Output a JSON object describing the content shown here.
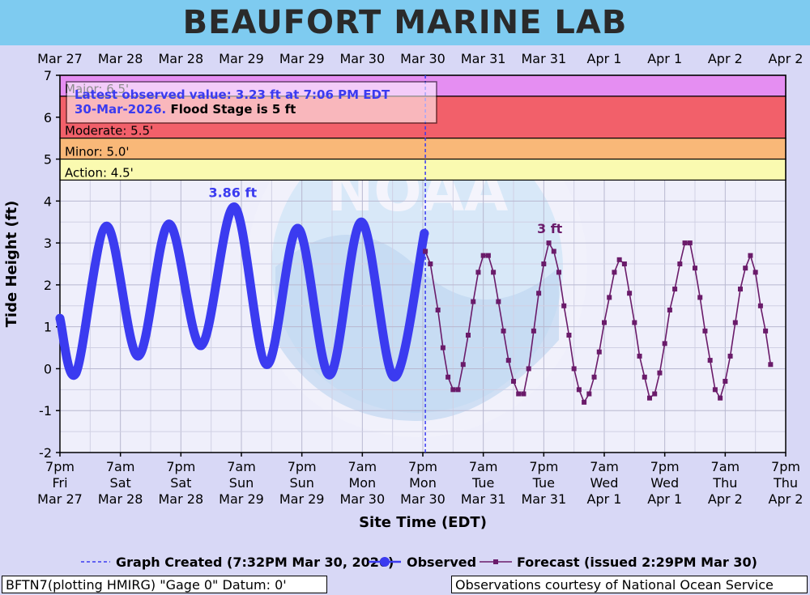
{
  "header": {
    "title": "BEAUFORT MARINE LAB"
  },
  "notice": {
    "line1": "Latest observed value: 3.23 ft at 7:06 PM EDT",
    "line2_blue": "30-Mar-2026.",
    "line2_black": " Flood Stage is 5 ft"
  },
  "footer": {
    "left": "BFTN7(plotting HMIRG) \"Gage 0\" Datum: 0'",
    "right": "Observations courtesy of National Ocean Service"
  },
  "legend": {
    "created": "Graph Created (7:32PM Mar 30, 2026)",
    "observed": "Observed",
    "forecast": "Forecast (issued 2:29PM Mar 30)"
  },
  "chart_data": {
    "type": "line",
    "xlabel": "Site Time (EDT)",
    "ylabel": "Tide Height (ft)",
    "ylim": [
      -2,
      7
    ],
    "y_ticks": [
      -2,
      -1,
      0,
      1,
      2,
      3,
      4,
      5,
      6,
      7
    ],
    "x_unit": "hours",
    "x_range": [
      0,
      144
    ],
    "top_tick_labels": [
      "Mar 27",
      "Mar 28",
      "Mar 28",
      "Mar 29",
      "Mar 29",
      "Mar 30",
      "Mar 30",
      "Mar 31",
      "Mar 31",
      "Apr  1",
      "Apr  1",
      "Apr  2",
      "Apr  2"
    ],
    "bottom_tick_labels": [
      [
        "7pm",
        "Fri",
        "Mar 27"
      ],
      [
        "7am",
        "Sat",
        "Mar 28"
      ],
      [
        "7pm",
        "Sat",
        "Mar 28"
      ],
      [
        "7am",
        "Sun",
        "Mar 29"
      ],
      [
        "7pm",
        "Sun",
        "Mar 29"
      ],
      [
        "7am",
        "Mon",
        "Mar 30"
      ],
      [
        "7pm",
        "Mon",
        "Mar 30"
      ],
      [
        "7am",
        "Tue",
        "Mar 31"
      ],
      [
        "7pm",
        "Tue",
        "Mar 31"
      ],
      [
        "7am",
        "Wed",
        "Apr 1"
      ],
      [
        "7pm",
        "Wed",
        "Apr 1"
      ],
      [
        "7am",
        "Thu",
        "Apr 2"
      ],
      [
        "7pm",
        "Thu",
        "Apr 2"
      ]
    ],
    "stage_bands": [
      {
        "name": "Major: 6.5'",
        "from": 6.5,
        "to": 7.0,
        "color": "#e58ef2"
      },
      {
        "name": "Moderate: 5.5'",
        "from": 5.5,
        "to": 6.5,
        "color": "#f2606a"
      },
      {
        "name": "Minor: 5.0'",
        "from": 5.0,
        "to": 5.5,
        "color": "#f9b878"
      },
      {
        "name": "Action: 4.5'",
        "from": 4.5,
        "to": 5.0,
        "color": "#fafab0"
      }
    ],
    "graph_created_x": 72.5,
    "observed": {
      "name": "Observed",
      "color": "#3b3bf0",
      "points": [
        [
          0,
          1.2
        ],
        [
          3.2,
          -0.1
        ],
        [
          9.2,
          3.4
        ],
        [
          15.5,
          0.3
        ],
        [
          21.6,
          3.45
        ],
        [
          28,
          0.55
        ],
        [
          34.6,
          3.86
        ],
        [
          41,
          0.1
        ],
        [
          47.2,
          3.35
        ],
        [
          53.5,
          -0.15
        ],
        [
          59.8,
          3.5
        ],
        [
          66.3,
          -0.2
        ],
        [
          72.3,
          3.23
        ]
      ]
    },
    "forecast": {
      "name": "Forecast",
      "color": "#6a1b6a",
      "points": [
        [
          72.5,
          2.8
        ],
        [
          73.5,
          2.5
        ],
        [
          75,
          1.4
        ],
        [
          76,
          0.5
        ],
        [
          77,
          -0.2
        ],
        [
          78,
          -0.5
        ],
        [
          79,
          -0.5
        ],
        [
          80,
          0.1
        ],
        [
          81,
          0.8
        ],
        [
          82,
          1.6
        ],
        [
          83,
          2.3
        ],
        [
          84,
          2.7
        ],
        [
          85,
          2.7
        ],
        [
          86,
          2.3
        ],
        [
          87,
          1.6
        ],
        [
          88,
          0.9
        ],
        [
          89,
          0.2
        ],
        [
          90,
          -0.3
        ],
        [
          91,
          -0.6
        ],
        [
          92,
          -0.6
        ],
        [
          93,
          0.0
        ],
        [
          94,
          0.9
        ],
        [
          95,
          1.8
        ],
        [
          96,
          2.5
        ],
        [
          97,
          3.0
        ],
        [
          98,
          2.8
        ],
        [
          99,
          2.3
        ],
        [
          100,
          1.5
        ],
        [
          101,
          0.8
        ],
        [
          102,
          0.0
        ],
        [
          103,
          -0.5
        ],
        [
          104,
          -0.8
        ],
        [
          105,
          -0.6
        ],
        [
          106,
          -0.2
        ],
        [
          107,
          0.4
        ],
        [
          108,
          1.1
        ],
        [
          109,
          1.7
        ],
        [
          110,
          2.3
        ],
        [
          111,
          2.6
        ],
        [
          112,
          2.5
        ],
        [
          113,
          1.8
        ],
        [
          114,
          1.1
        ],
        [
          115,
          0.3
        ],
        [
          116,
          -0.2
        ],
        [
          117,
          -0.7
        ],
        [
          118,
          -0.6
        ],
        [
          119,
          -0.1
        ],
        [
          120,
          0.6
        ],
        [
          121,
          1.4
        ],
        [
          122,
          1.9
        ],
        [
          123,
          2.5
        ],
        [
          124,
          3.0
        ],
        [
          125,
          3.0
        ],
        [
          126,
          2.4
        ],
        [
          127,
          1.7
        ],
        [
          128,
          0.9
        ],
        [
          129,
          0.2
        ],
        [
          130,
          -0.5
        ],
        [
          131,
          -0.7
        ],
        [
          132,
          -0.3
        ],
        [
          133,
          0.3
        ],
        [
          134,
          1.1
        ],
        [
          135,
          1.9
        ],
        [
          136,
          2.4
        ],
        [
          137,
          2.7
        ],
        [
          138,
          2.3
        ],
        [
          139,
          1.5
        ],
        [
          140,
          0.9
        ],
        [
          141,
          0.1
        ]
      ]
    },
    "annotations": [
      {
        "text": "3.86 ft",
        "x": 34.6,
        "y": 3.86,
        "color": "#3b3bf0"
      },
      {
        "text": "3 ft",
        "x": 97.5,
        "y": 3.0,
        "color": "#6a1b6a"
      }
    ],
    "grid": true,
    "legend_position": "bottom"
  }
}
